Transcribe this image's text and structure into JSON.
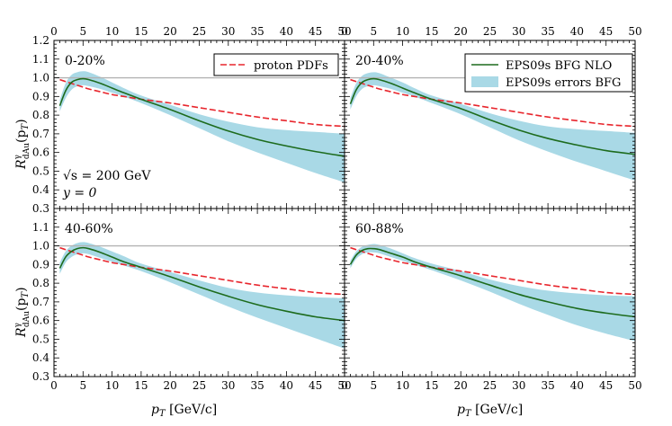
{
  "chart_data": {
    "type": "line",
    "layout": "2x2 panels",
    "xlabel": "p_T [GeV/c]",
    "ylabel": "R^γ_dAu(p_T)",
    "xlim": [
      0,
      50
    ],
    "ylim": [
      0.3,
      1.2
    ],
    "x_ticks": [
      0,
      5,
      10,
      15,
      20,
      25,
      30,
      35,
      40,
      45,
      50
    ],
    "y_ticks": [
      0.3,
      0.4,
      0.5,
      0.6,
      0.7,
      0.8,
      0.9,
      1.0,
      1.1,
      1.2
    ],
    "reference_line": 1.0,
    "x_labels": [
      "0",
      "5",
      "10",
      "15",
      "20",
      "25",
      "30",
      "35",
      "40",
      "45",
      "50"
    ],
    "y_labels": [
      "0.3",
      "0.4",
      "0.5",
      "0.6",
      "0.7",
      "0.8",
      "0.9",
      "1.0",
      "1.1",
      "1.2"
    ],
    "x_label_parts": {
      "base": "p",
      "sub": "T",
      "rest": " [GeV/c]"
    },
    "y_label_parts": {
      "base": "R",
      "sup": "γ",
      "sub": "dAu",
      "rest": "(p",
      "sub2": "T",
      "close": ")"
    },
    "annotation": {
      "line1": "√s = 200 GeV",
      "line2": "y = 0"
    },
    "legend": {
      "proton": "proton PDFs",
      "eps": "EPS09s BFG NLO",
      "errors": "EPS09s errors BFG"
    },
    "colors": {
      "eps_line": "#1d6b1d",
      "proton_line": "#e8262d",
      "band": "#a9d9e6",
      "reference": "#b3b3b3"
    },
    "x_grid": [
      1,
      2,
      3,
      4,
      5,
      6,
      8,
      10,
      12,
      15,
      20,
      25,
      30,
      35,
      40,
      45,
      50
    ],
    "proton_curve": [
      0.99,
      0.98,
      0.97,
      0.96,
      0.95,
      0.94,
      0.925,
      0.91,
      0.9,
      0.885,
      0.865,
      0.84,
      0.815,
      0.79,
      0.77,
      0.75,
      0.74
    ],
    "panels": [
      {
        "label": "0-20%",
        "eps": [
          0.85,
          0.93,
          0.975,
          0.99,
          0.995,
          0.99,
          0.97,
          0.945,
          0.92,
          0.885,
          0.83,
          0.77,
          0.715,
          0.67,
          0.635,
          0.605,
          0.58
        ],
        "band_upper": [
          0.88,
          0.97,
          1.015,
          1.03,
          1.035,
          1.03,
          1.005,
          0.975,
          0.945,
          0.905,
          0.855,
          0.805,
          0.765,
          0.735,
          0.72,
          0.71,
          0.7
        ],
        "band_lower": [
          0.82,
          0.89,
          0.935,
          0.955,
          0.96,
          0.955,
          0.94,
          0.92,
          0.9,
          0.865,
          0.8,
          0.73,
          0.66,
          0.6,
          0.545,
          0.49,
          0.44
        ]
      },
      {
        "label": "20-40%",
        "eps": [
          0.86,
          0.935,
          0.975,
          0.99,
          0.995,
          0.99,
          0.97,
          0.945,
          0.92,
          0.885,
          0.835,
          0.775,
          0.72,
          0.675,
          0.64,
          0.61,
          0.59
        ],
        "band_upper": [
          0.89,
          0.97,
          1.01,
          1.025,
          1.03,
          1.025,
          1.0,
          0.975,
          0.945,
          0.905,
          0.86,
          0.81,
          0.77,
          0.74,
          0.725,
          0.715,
          0.705
        ],
        "band_lower": [
          0.83,
          0.9,
          0.94,
          0.955,
          0.96,
          0.955,
          0.94,
          0.92,
          0.9,
          0.865,
          0.805,
          0.735,
          0.665,
          0.605,
          0.55,
          0.5,
          0.45
        ]
      },
      {
        "label": "40-60%",
        "eps": [
          0.88,
          0.94,
          0.97,
          0.985,
          0.99,
          0.985,
          0.965,
          0.94,
          0.915,
          0.885,
          0.835,
          0.78,
          0.73,
          0.685,
          0.65,
          0.62,
          0.6
        ],
        "band_upper": [
          0.91,
          0.97,
          1.0,
          1.015,
          1.02,
          1.015,
          0.995,
          0.97,
          0.945,
          0.905,
          0.86,
          0.815,
          0.775,
          0.75,
          0.735,
          0.725,
          0.72
        ],
        "band_lower": [
          0.85,
          0.91,
          0.94,
          0.955,
          0.96,
          0.955,
          0.935,
          0.915,
          0.895,
          0.865,
          0.805,
          0.74,
          0.675,
          0.615,
          0.56,
          0.505,
          0.45
        ]
      },
      {
        "label": "60-88%",
        "eps": [
          0.9,
          0.95,
          0.975,
          0.985,
          0.985,
          0.98,
          0.96,
          0.94,
          0.915,
          0.885,
          0.84,
          0.79,
          0.74,
          0.7,
          0.665,
          0.64,
          0.62
        ],
        "band_upper": [
          0.92,
          0.97,
          0.995,
          1.005,
          1.01,
          1.005,
          0.985,
          0.96,
          0.935,
          0.905,
          0.865,
          0.82,
          0.785,
          0.76,
          0.745,
          0.735,
          0.73
        ],
        "band_lower": [
          0.88,
          0.93,
          0.955,
          0.965,
          0.965,
          0.96,
          0.94,
          0.92,
          0.9,
          0.87,
          0.815,
          0.755,
          0.69,
          0.63,
          0.575,
          0.53,
          0.49
        ]
      }
    ]
  }
}
